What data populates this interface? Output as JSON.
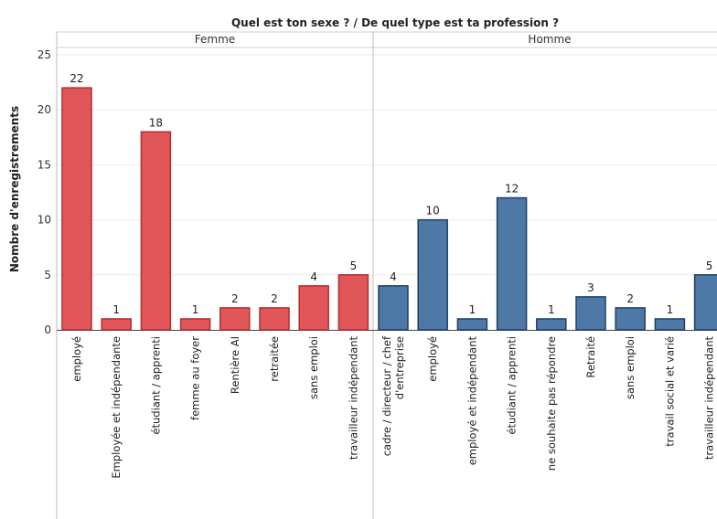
{
  "chart_data": {
    "type": "bar",
    "title": "Quel est ton sexe ?  /  De quel type est ta profession ?",
    "ylabel": "Nombre d'enregistrements",
    "ylim": [
      0,
      25
    ],
    "yticks": [
      0,
      5,
      10,
      15,
      20,
      25
    ],
    "grid": true,
    "panels": [
      {
        "name": "Femme",
        "color": "#e15759",
        "stroke": "#b32d2f",
        "categories": [
          "employé",
          "Employée et indépendante",
          "étudiant / apprenti",
          "femme au foyer",
          "Rentière AI",
          "retraitée",
          "sans emploi",
          "travailleur indépendant"
        ],
        "values": [
          22,
          1,
          18,
          1,
          2,
          2,
          4,
          5
        ]
      },
      {
        "name": "Homme",
        "color": "#4e79a7",
        "stroke": "#1f3f66",
        "categories": [
          "cadre / directeur / chef d'entreprise",
          "employé",
          "employé et indépendant",
          "étudiant / apprenti",
          "ne souhaite pas répondre",
          "Retraité",
          "sans emploi",
          "travail social et varié",
          "travailleur indépendant"
        ],
        "values": [
          4,
          10,
          1,
          12,
          1,
          3,
          2,
          1,
          5
        ]
      }
    ]
  }
}
